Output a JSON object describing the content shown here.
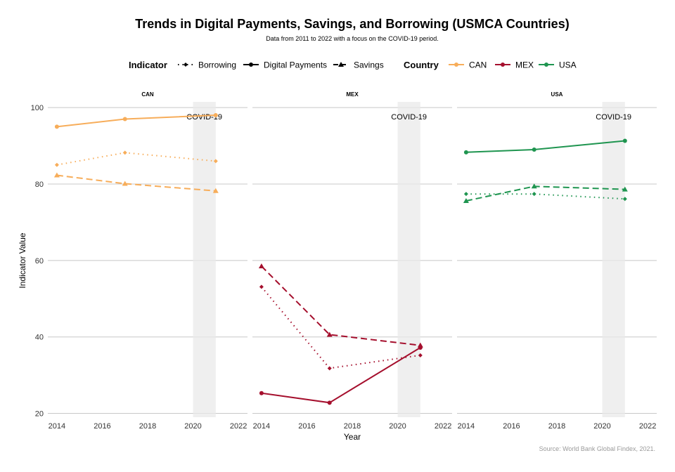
{
  "chart_data": {
    "type": "line",
    "title": "Trends in Digital Payments, Savings, and Borrowing (USMCA Countries)",
    "subtitle": "Data from 2011 to 2022 with a focus on the COVID-19 period.",
    "caption": "Source: World Bank Global Findex, 2021.",
    "xlabel": "Year",
    "ylabel": "Indicator Value",
    "xlim": [
      2013.6,
      2022.4
    ],
    "ylim": [
      19,
      101.5
    ],
    "x_ticks": [
      2014,
      2016,
      2018,
      2020,
      2022
    ],
    "y_ticks": [
      20,
      40,
      60,
      80,
      100
    ],
    "grid": "horizontal",
    "legend_placement": "top",
    "covid_band": {
      "start": 2020,
      "end": 2021,
      "label": "COVID-19"
    },
    "legends": {
      "indicator": {
        "title": "Indicator",
        "items": [
          {
            "label": "Borrowing",
            "line": "dotted",
            "marker": "diamond"
          },
          {
            "label": "Digital Payments",
            "line": "solid",
            "marker": "circle"
          },
          {
            "label": "Savings",
            "line": "dashed",
            "marker": "triangle"
          }
        ]
      },
      "country": {
        "title": "Country",
        "items": [
          {
            "label": "CAN",
            "color": "#F7AD5A"
          },
          {
            "label": "MEX",
            "color": "#A50F2D"
          },
          {
            "label": "USA",
            "color": "#1F9550"
          }
        ]
      }
    },
    "panels": [
      {
        "country": "CAN",
        "color": "#F7AD5A",
        "series": [
          {
            "indicator": "Digital Payments",
            "x": [
              2014,
              2017,
              2021
            ],
            "values": [
              95,
              97,
              98
            ]
          },
          {
            "indicator": "Borrowing",
            "x": [
              2014,
              2017,
              2021
            ],
            "values": [
              85,
              88.2,
              86
            ]
          },
          {
            "indicator": "Savings",
            "x": [
              2014,
              2017,
              2021
            ],
            "values": [
              82.3,
              80.1,
              78.2
            ]
          }
        ]
      },
      {
        "country": "MEX",
        "color": "#A50F2D",
        "series": [
          {
            "indicator": "Digital Payments",
            "x": [
              2014,
              2017,
              2021
            ],
            "values": [
              25.3,
              22.8,
              37.2
            ]
          },
          {
            "indicator": "Borrowing",
            "x": [
              2014,
              2017,
              2021
            ],
            "values": [
              53.1,
              31.8,
              35.2
            ]
          },
          {
            "indicator": "Savings",
            "x": [
              2014,
              2017,
              2021
            ],
            "values": [
              58.5,
              40.6,
              37.8
            ]
          }
        ]
      },
      {
        "country": "USA",
        "color": "#1F9550",
        "series": [
          {
            "indicator": "Digital Payments",
            "x": [
              2014,
              2017,
              2021
            ],
            "values": [
              88.3,
              89,
              91.3
            ]
          },
          {
            "indicator": "Borrowing",
            "x": [
              2014,
              2017,
              2021
            ],
            "values": [
              77.4,
              77.4,
              76.1
            ]
          },
          {
            "indicator": "Savings",
            "x": [
              2014,
              2017,
              2021
            ],
            "values": [
              75.6,
              79.4,
              78.6
            ]
          }
        ]
      }
    ]
  }
}
